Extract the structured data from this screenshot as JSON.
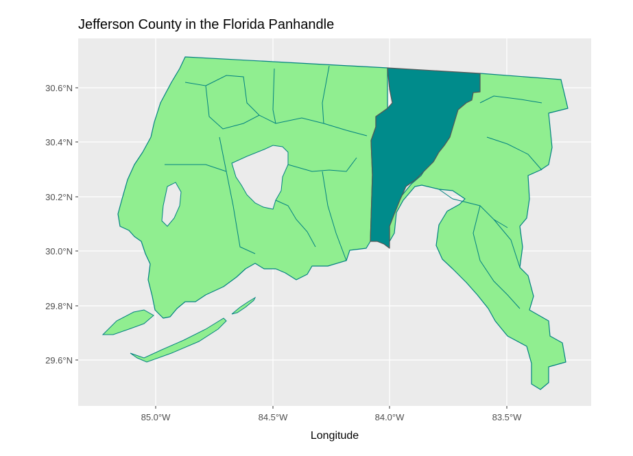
{
  "title": "Jefferson County in the Florida Panhandle",
  "x_axis_title": "Longitude",
  "x_ticks": [
    "85.0°W",
    "84.5°W",
    "84.0°W",
    "83.5°W"
  ],
  "y_ticks": [
    "30.6°N",
    "30.4°N",
    "30.2°N",
    "30.0°N",
    "29.8°N",
    "29.6°N"
  ],
  "highlighted_county": "Jefferson County",
  "colors": {
    "panel_background": "#ebebeb",
    "county_fill": "#90ee90",
    "county_border": "#008080",
    "highlight_fill": "#008b8b"
  }
}
